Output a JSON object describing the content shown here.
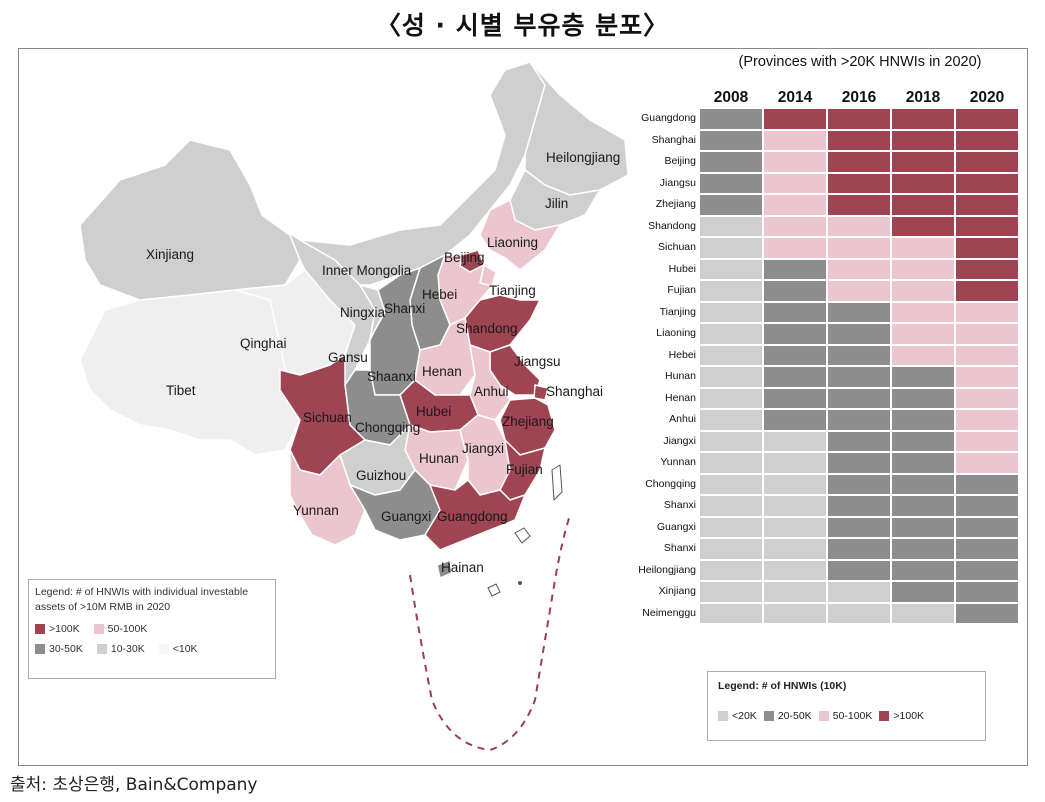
{
  "title": "〈성 · 시별 부유층 분포〉",
  "source": "출처: 초상은행, Bain&Company",
  "colors": {
    "over_100k": "#9e4452",
    "k50_100": "#ecc6cf",
    "k30_50": "#8d8d8d",
    "k10_30": "#cfcfcf",
    "under_10k": "#efefef",
    "water": "#ffffff"
  },
  "map": {
    "labels": [
      "Heilongjiang",
      "Jilin",
      "Liaoning",
      "Beijing",
      "Tianjing",
      "Inner Mongolia",
      "Xinjiang",
      "Hebei",
      "Shanxi",
      "Ningxia",
      "Qinghai",
      "Gansu",
      "Shandong",
      "Jiangsu",
      "Shanghai",
      "Henan",
      "Anhui",
      "Shaanxi",
      "Tibet",
      "Sichuan",
      "Chongqing",
      "Hubei",
      "Zhejiang",
      "Jiangxi",
      "Hunan",
      "Guizhou",
      "Fujian",
      "Yunnan",
      "Guangxi",
      "Guangdong",
      "Hainan"
    ],
    "legend": {
      "title": "Legend: # of HNWIs with individual investable assets of >10M RMB in 2020",
      "items": [
        ">100K",
        "50-100K",
        "30-50K",
        "10-30K",
        "<10K"
      ]
    }
  },
  "heatmap": {
    "subtitle": "(Provinces with >20K HNWIs in 2020)",
    "years": [
      "2008",
      "2014",
      "2016",
      "2018",
      "2020"
    ],
    "rows": [
      "Guangdong",
      "Shanghai",
      "Beijing",
      "Jiangsu",
      "Zhejiang",
      "Shandong",
      "Sichuan",
      "Hubei",
      "Fujian",
      "Tianjing",
      "Liaoning",
      "Hebei",
      "Hunan",
      "Henan",
      "Anhui",
      "Jiangxi",
      "Yunnan",
      "Chongqing",
      "Shanxi",
      "Guangxi",
      "Shanxi",
      "Heilongjiang",
      "Xinjiang",
      "Neimenggu"
    ],
    "category_levels": [
      "<20K",
      "20-50K",
      "50-100K",
      ">100K"
    ],
    "values": [
      [
        1,
        3,
        3,
        3,
        3
      ],
      [
        1,
        2,
        3,
        3,
        3
      ],
      [
        1,
        2,
        3,
        3,
        3
      ],
      [
        1,
        2,
        3,
        3,
        3
      ],
      [
        1,
        2,
        3,
        3,
        3
      ],
      [
        0,
        2,
        2,
        3,
        3
      ],
      [
        0,
        2,
        2,
        2,
        3
      ],
      [
        0,
        1,
        2,
        2,
        3
      ],
      [
        0,
        1,
        2,
        2,
        3
      ],
      [
        0,
        1,
        1,
        2,
        2
      ],
      [
        0,
        1,
        1,
        2,
        2
      ],
      [
        0,
        1,
        1,
        2,
        2
      ],
      [
        0,
        1,
        1,
        1,
        2
      ],
      [
        0,
        1,
        1,
        1,
        2
      ],
      [
        0,
        1,
        1,
        1,
        2
      ],
      [
        0,
        0,
        1,
        1,
        2
      ],
      [
        0,
        0,
        1,
        1,
        2
      ],
      [
        0,
        0,
        1,
        1,
        1
      ],
      [
        0,
        0,
        1,
        1,
        1
      ],
      [
        0,
        0,
        1,
        1,
        1
      ],
      [
        0,
        0,
        1,
        1,
        1
      ],
      [
        0,
        0,
        1,
        1,
        1
      ],
      [
        0,
        0,
        0,
        1,
        1
      ],
      [
        0,
        0,
        0,
        0,
        1
      ]
    ],
    "legend": {
      "title": "Legend: # of HNWIs (10K)",
      "items": [
        "<20K",
        "20-50K",
        "50-100K",
        ">100K"
      ]
    }
  }
}
